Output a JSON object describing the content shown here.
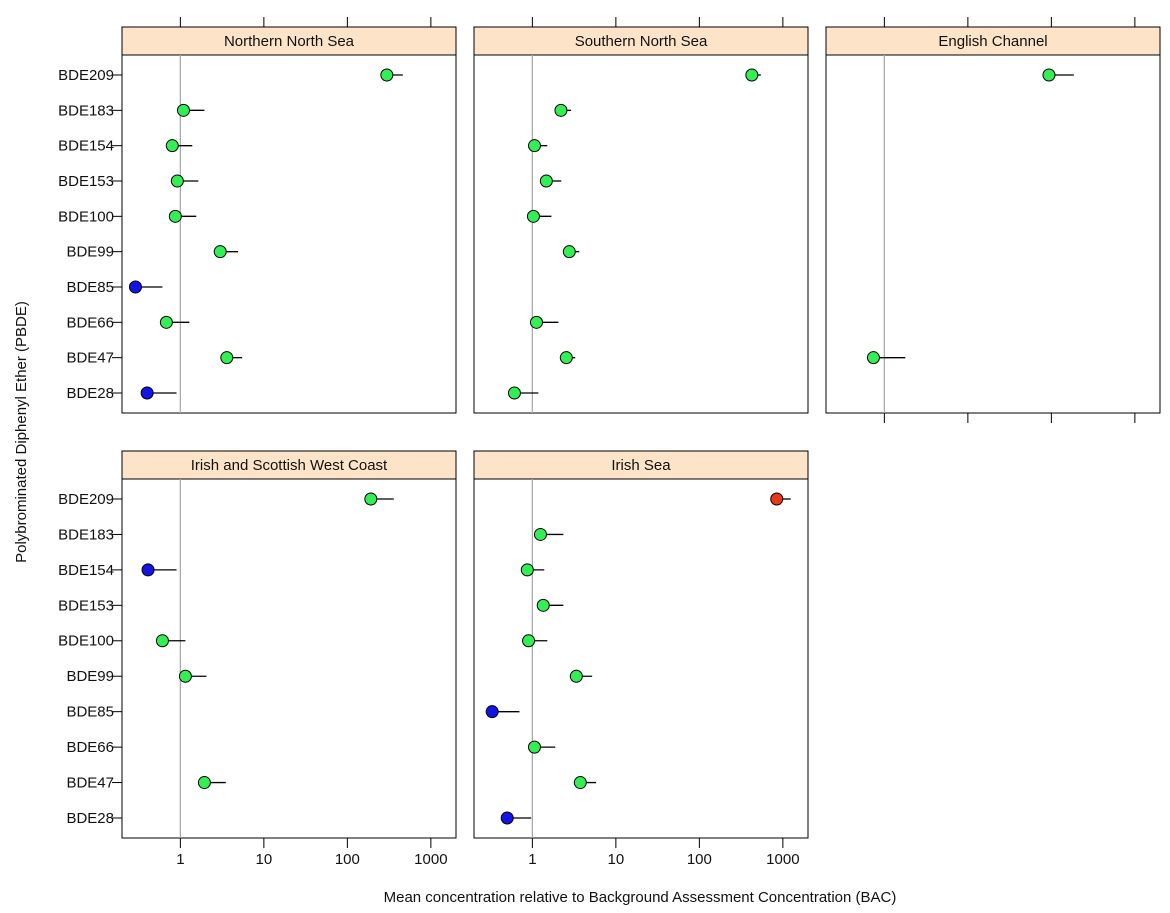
{
  "xlabel": "Mean concentration relative to Background Assessment Concentration (BAC)",
  "ylabel": "Polybrominated Diphenyl Ether (PBDE)",
  "categories": [
    "BDE209",
    "BDE183",
    "BDE154",
    "BDE153",
    "BDE100",
    "BDE99",
    "BDE85",
    "BDE66",
    "BDE47",
    "BDE28"
  ],
  "xlim": [
    0.2,
    2000
  ],
  "xticks": [
    1,
    10,
    100,
    1000
  ],
  "log_x": true,
  "reference_x": 1,
  "chart_data": [
    {
      "type": "dot",
      "title": "Northern North Sea",
      "values": [
        297,
        1.09,
        0.8,
        0.92,
        0.87,
        3.0,
        0.29,
        0.68,
        3.6,
        0.4
      ],
      "upper": [
        462,
        1.94,
        1.39,
        1.64,
        1.55,
        4.9,
        0.61,
        1.28,
        5.5,
        0.9
      ],
      "colors": [
        "#33ee55",
        "#33ee55",
        "#33ee55",
        "#33ee55",
        "#33ee55",
        "#33ee55",
        "#1414e6",
        "#33ee55",
        "#33ee55",
        "#1414e6"
      ]
    },
    {
      "type": "dot",
      "title": "Southern North Sea",
      "values": [
        425,
        2.2,
        1.06,
        1.47,
        1.03,
        2.77,
        null,
        1.12,
        2.55,
        0.61
      ],
      "upper": [
        545,
        2.9,
        1.51,
        2.22,
        1.69,
        3.64,
        null,
        2.05,
        3.26,
        1.18
      ],
      "colors": [
        "#33ee55",
        "#33ee55",
        "#33ee55",
        "#33ee55",
        "#33ee55",
        "#33ee55",
        null,
        "#33ee55",
        "#33ee55",
        "#33ee55"
      ]
    },
    {
      "type": "dot",
      "title": "English Channel",
      "values": [
        93.6,
        null,
        null,
        null,
        null,
        null,
        null,
        null,
        0.74,
        null
      ],
      "upper": [
        186,
        null,
        null,
        null,
        null,
        null,
        null,
        null,
        1.78,
        null
      ],
      "colors": [
        "#33ee55",
        null,
        null,
        null,
        null,
        null,
        null,
        null,
        "#33ee55",
        null
      ]
    },
    {
      "type": "dot",
      "title": "Irish and Scottish West Coast",
      "values": [
        191,
        null,
        0.41,
        null,
        0.61,
        1.15,
        null,
        null,
        1.94,
        null
      ],
      "upper": [
        360,
        null,
        0.9,
        null,
        1.15,
        2.05,
        null,
        null,
        3.5,
        null
      ],
      "colors": [
        "#33ee55",
        null,
        "#1414e6",
        null,
        "#33ee55",
        "#33ee55",
        null,
        null,
        "#33ee55",
        null
      ]
    },
    {
      "type": "dot",
      "title": "Irish Sea",
      "values": [
        845,
        1.25,
        0.87,
        1.35,
        0.9,
        3.36,
        0.33,
        1.06,
        3.75,
        0.5
      ],
      "upper": [
        1243,
        2.35,
        1.39,
        2.35,
        1.51,
        5.2,
        0.7,
        1.88,
        5.8,
        0.97
      ],
      "colors": [
        "#e8381a",
        "#33ee55",
        "#33ee55",
        "#33ee55",
        "#33ee55",
        "#33ee55",
        "#1414e6",
        "#33ee55",
        "#33ee55",
        "#1414e6"
      ]
    }
  ]
}
